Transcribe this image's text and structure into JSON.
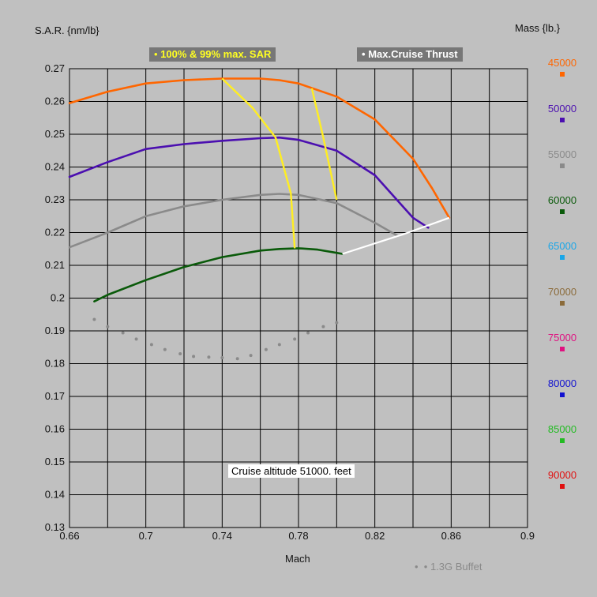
{
  "chart_data": {
    "type": "line",
    "ylabel": "S.A.R. {nm/lb}",
    "xlabel": "Mach",
    "xlim": [
      0.66,
      0.9
    ],
    "ylim": [
      0.13,
      0.27
    ],
    "xticks": [
      "0.66",
      "0.7",
      "0.74",
      "0.78",
      "0.82",
      "0.86",
      "0.9"
    ],
    "yticks": [
      "0.13",
      "0.14",
      "0.15",
      "0.16",
      "0.17",
      "0.18",
      "0.19",
      "0.2",
      "0.21",
      "0.22",
      "0.23",
      "0.24",
      "0.25",
      "0.26",
      "0.27"
    ],
    "grid": true,
    "mass_legend_title": "Mass {lb.}",
    "mass_legend": [
      {
        "label": "45000",
        "color": "#ff6600"
      },
      {
        "label": "50000",
        "color": "#4b0fb0"
      },
      {
        "label": "55000",
        "color": "#8a8a8a"
      },
      {
        "label": "60000",
        "color": "#0a5a0a"
      },
      {
        "label": "65000",
        "color": "#1aa6e8"
      },
      {
        "label": "70000",
        "color": "#8b6b3a"
      },
      {
        "label": "75000",
        "color": "#e01080"
      },
      {
        "label": "80000",
        "color": "#1010d0"
      },
      {
        "label": "85000",
        "color": "#22bb22"
      },
      {
        "label": "90000",
        "color": "#e01010"
      }
    ],
    "series": [
      {
        "name": "45000",
        "color": "#ff6600",
        "x": [
          0.66,
          0.68,
          0.7,
          0.72,
          0.74,
          0.76,
          0.77,
          0.78,
          0.8,
          0.82,
          0.84,
          0.85,
          0.859
        ],
        "y": [
          0.2595,
          0.263,
          0.2655,
          0.2665,
          0.267,
          0.267,
          0.2665,
          0.2655,
          0.2615,
          0.2545,
          0.2425,
          0.2335,
          0.2245
        ]
      },
      {
        "name": "50000",
        "color": "#4b0fb0",
        "x": [
          0.66,
          0.68,
          0.7,
          0.72,
          0.74,
          0.76,
          0.77,
          0.78,
          0.8,
          0.82,
          0.84,
          0.848
        ],
        "y": [
          0.237,
          0.2415,
          0.2455,
          0.247,
          0.248,
          0.2488,
          0.249,
          0.2483,
          0.245,
          0.2375,
          0.2245,
          0.2215
        ]
      },
      {
        "name": "55000",
        "color": "#8a8a8a",
        "x": [
          0.66,
          0.68,
          0.7,
          0.72,
          0.74,
          0.76,
          0.77,
          0.78,
          0.8,
          0.82,
          0.832
        ],
        "y": [
          0.2155,
          0.22,
          0.225,
          0.228,
          0.23,
          0.2315,
          0.2318,
          0.2315,
          0.229,
          0.223,
          0.219
        ]
      },
      {
        "name": "60000",
        "color": "#0a5a0a",
        "x": [
          0.673,
          0.68,
          0.7,
          0.72,
          0.74,
          0.76,
          0.77,
          0.78,
          0.79,
          0.8,
          0.803
        ],
        "y": [
          0.199,
          0.201,
          0.2055,
          0.2095,
          0.2125,
          0.2145,
          0.215,
          0.2152,
          0.2148,
          0.2138,
          0.2135
        ]
      }
    ],
    "max_sar_lines": [
      {
        "x": [
          0.74,
          0.756,
          0.768,
          0.776,
          0.778
        ],
        "y": [
          0.267,
          0.258,
          0.249,
          0.232,
          0.2152
        ]
      },
      {
        "x": [
          0.787,
          0.793,
          0.8
        ],
        "y": [
          0.264,
          0.249,
          0.23
        ]
      }
    ],
    "max_cruise_thrust_line": {
      "x": [
        0.803,
        0.835,
        0.859
      ],
      "y": [
        0.2135,
        0.2195,
        0.2245
      ]
    },
    "buffet_points": {
      "x": [
        0.673,
        0.68,
        0.688,
        0.695,
        0.703,
        0.71,
        0.718,
        0.725,
        0.733,
        0.74,
        0.748,
        0.755,
        0.763,
        0.77,
        0.778,
        0.785,
        0.793,
        0.8
      ],
      "y": [
        0.1935,
        0.1913,
        0.1894,
        0.1875,
        0.1858,
        0.1843,
        0.183,
        0.1822,
        0.182,
        0.1818,
        0.1815,
        0.1825,
        0.1843,
        0.1858,
        0.1875,
        0.1894,
        0.1913,
        0.1925
      ]
    },
    "legend_max_sar": "100% & 99% max. SAR",
    "legend_max_thrust": "Max.Cruise Thrust",
    "legend_buffet": "1.3G Buffet",
    "annotation": "Cruise altitude 51000. feet",
    "colors": {
      "max_sar": "#ffee22",
      "max_thrust": "#ffffff",
      "buffet": "#8a8a8a",
      "grid": "#000000"
    }
  }
}
